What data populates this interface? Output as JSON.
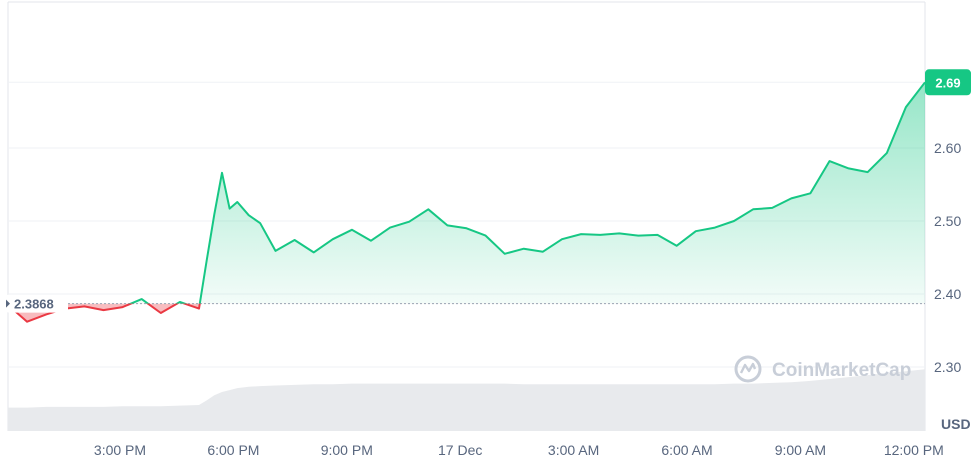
{
  "chart_data": {
    "type": "line",
    "x_tick_labels": [
      "3:00 PM",
      "6:00 PM",
      "9:00 PM",
      "17 Dec",
      "3:00 AM",
      "6:00 AM",
      "9:00 AM",
      "12:00 PM"
    ],
    "y_tick_labels": [
      "2.30",
      "2.40",
      "2.50",
      "2.60"
    ],
    "y_ticks": [
      2.3,
      2.4,
      2.5,
      2.6,
      2.69
    ],
    "ylim": [
      2.27,
      2.72
    ],
    "reference_value": 2.3868,
    "reference_label": "2.3868",
    "current_value": 2.69,
    "current_label": "2.69",
    "unit": "USD",
    "watermark": "CoinMarketCap",
    "grid": true,
    "x_hours": [
      0,
      0.5,
      1,
      1.5,
      2,
      2.5,
      3,
      3.5,
      4,
      4.5,
      5,
      5.2,
      5.4,
      5.6,
      5.8,
      6,
      6.3,
      6.6,
      7,
      7.5,
      8,
      8.5,
      9,
      9.5,
      10,
      10.5,
      11,
      11.5,
      12,
      12.5,
      13,
      13.5,
      14,
      14.5,
      15,
      15.5,
      16,
      16.5,
      17,
      17.5,
      18,
      18.5,
      19,
      19.5,
      20,
      20.5,
      21,
      21.5,
      22,
      22.5,
      23,
      23.5,
      24
    ],
    "values": [
      2.385,
      2.362,
      2.372,
      2.38,
      2.383,
      2.378,
      2.382,
      2.393,
      2.374,
      2.389,
      2.38,
      2.446,
      2.509,
      2.566,
      2.517,
      2.526,
      2.508,
      2.497,
      2.459,
      2.474,
      2.457,
      2.475,
      2.488,
      2.473,
      2.491,
      2.499,
      2.516,
      2.494,
      2.49,
      2.48,
      2.455,
      2.462,
      2.458,
      2.475,
      2.482,
      2.481,
      2.483,
      2.48,
      2.481,
      2.466,
      2.486,
      2.491,
      2.5,
      2.516,
      2.518,
      2.531,
      2.538,
      2.582,
      2.572,
      2.567,
      2.593,
      2.656,
      2.69
    ],
    "volume_relative": [
      0.36,
      0.36,
      0.37,
      0.37,
      0.37,
      0.37,
      0.38,
      0.38,
      0.38,
      0.39,
      0.4,
      0.47,
      0.55,
      0.6,
      0.63,
      0.66,
      0.68,
      0.69,
      0.7,
      0.71,
      0.72,
      0.72,
      0.73,
      0.73,
      0.73,
      0.73,
      0.73,
      0.73,
      0.73,
      0.73,
      0.73,
      0.72,
      0.72,
      0.72,
      0.72,
      0.72,
      0.72,
      0.72,
      0.72,
      0.72,
      0.72,
      0.72,
      0.73,
      0.73,
      0.74,
      0.75,
      0.77,
      0.8,
      0.83,
      0.86,
      0.89,
      0.92,
      0.95
    ]
  },
  "colors": {
    "up": "#16c784",
    "down": "#ea3943",
    "grid": "#eff2f5",
    "volume": "#e8eaed",
    "text": "#58667e"
  }
}
